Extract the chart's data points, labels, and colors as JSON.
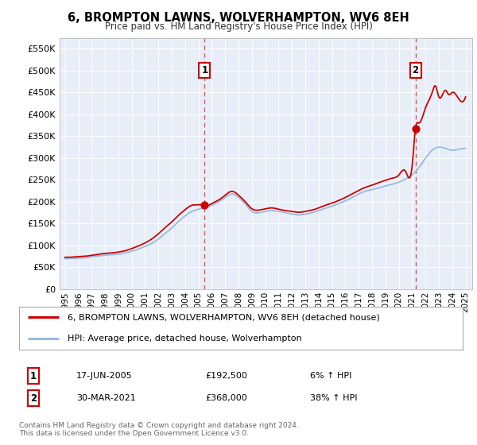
{
  "title": "6, BROMPTON LAWNS, WOLVERHAMPTON, WV6 8EH",
  "subtitle": "Price paid vs. HM Land Registry's House Price Index (HPI)",
  "ylabel_ticks": [
    "£0",
    "£50K",
    "£100K",
    "£150K",
    "£200K",
    "£250K",
    "£300K",
    "£350K",
    "£400K",
    "£450K",
    "£500K",
    "£550K"
  ],
  "ytick_values": [
    0,
    50000,
    100000,
    150000,
    200000,
    250000,
    300000,
    350000,
    400000,
    450000,
    500000,
    550000
  ],
  "ylim": [
    0,
    575000
  ],
  "xlim_start": 1994.6,
  "xlim_end": 2025.5,
  "sale1_x": 2005.46,
  "sale1_y": 192500,
  "sale2_x": 2021.25,
  "sale2_y": 368000,
  "sale1_label": "1",
  "sale2_label": "2",
  "sale1_date": "17-JUN-2005",
  "sale1_price": "£192,500",
  "sale1_hpi": "6% ↑ HPI",
  "sale2_date": "30-MAR-2021",
  "sale2_price": "£368,000",
  "sale2_hpi": "38% ↑ HPI",
  "line1_color": "#cc0000",
  "line2_color": "#99bbdd",
  "dashed_color": "#dd4444",
  "background_chart": "#e8eef8",
  "background_fig": "#ffffff",
  "legend1_label": "6, BROMPTON LAWNS, WOLVERHAMPTON, WV6 8EH (detached house)",
  "legend2_label": "HPI: Average price, detached house, Wolverhampton",
  "footer": "Contains HM Land Registry data © Crown copyright and database right 2024.\nThis data is licensed under the Open Government Licence v3.0.",
  "xtick_years": [
    1995,
    1996,
    1997,
    1998,
    1999,
    2000,
    2001,
    2002,
    2003,
    2004,
    2005,
    2006,
    2007,
    2008,
    2009,
    2010,
    2011,
    2012,
    2013,
    2014,
    2015,
    2016,
    2017,
    2018,
    2019,
    2020,
    2021,
    2022,
    2023,
    2024,
    2025
  ],
  "hpi_data": [
    [
      1995.0,
      70000
    ],
    [
      1995.5,
      70500
    ],
    [
      1996.0,
      71000
    ],
    [
      1996.5,
      72000
    ],
    [
      1997.0,
      74000
    ],
    [
      1997.5,
      76000
    ],
    [
      1998.0,
      78000
    ],
    [
      1998.5,
      79000
    ],
    [
      1999.0,
      80000
    ],
    [
      1999.5,
      83000
    ],
    [
      2000.0,
      87000
    ],
    [
      2000.5,
      92000
    ],
    [
      2001.0,
      98000
    ],
    [
      2001.5,
      105000
    ],
    [
      2002.0,
      115000
    ],
    [
      2002.5,
      128000
    ],
    [
      2003.0,
      140000
    ],
    [
      2003.5,
      155000
    ],
    [
      2004.0,
      168000
    ],
    [
      2004.5,
      178000
    ],
    [
      2005.0,
      183000
    ],
    [
      2005.5,
      186000
    ],
    [
      2006.0,
      192000
    ],
    [
      2006.5,
      200000
    ],
    [
      2007.0,
      210000
    ],
    [
      2007.5,
      218000
    ],
    [
      2008.0,
      210000
    ],
    [
      2008.5,
      195000
    ],
    [
      2009.0,
      178000
    ],
    [
      2009.5,
      175000
    ],
    [
      2010.0,
      178000
    ],
    [
      2010.5,
      180000
    ],
    [
      2011.0,
      178000
    ],
    [
      2011.5,
      175000
    ],
    [
      2012.0,
      172000
    ],
    [
      2012.5,
      170000
    ],
    [
      2013.0,
      172000
    ],
    [
      2013.5,
      175000
    ],
    [
      2014.0,
      180000
    ],
    [
      2014.5,
      185000
    ],
    [
      2015.0,
      190000
    ],
    [
      2015.5,
      196000
    ],
    [
      2016.0,
      202000
    ],
    [
      2016.5,
      210000
    ],
    [
      2017.0,
      218000
    ],
    [
      2017.5,
      224000
    ],
    [
      2018.0,
      228000
    ],
    [
      2018.5,
      232000
    ],
    [
      2019.0,
      236000
    ],
    [
      2019.5,
      240000
    ],
    [
      2020.0,
      245000
    ],
    [
      2020.5,
      252000
    ],
    [
      2021.0,
      262000
    ],
    [
      2021.5,
      278000
    ],
    [
      2022.0,
      300000
    ],
    [
      2022.5,
      318000
    ],
    [
      2023.0,
      325000
    ],
    [
      2023.5,
      322000
    ],
    [
      2024.0,
      318000
    ],
    [
      2024.5,
      320000
    ],
    [
      2025.0,
      322000
    ]
  ],
  "prop_data": [
    [
      1995.0,
      73000
    ],
    [
      1995.5,
      73500
    ],
    [
      1996.0,
      74500
    ],
    [
      1996.5,
      75500
    ],
    [
      1997.0,
      77500
    ],
    [
      1997.5,
      80000
    ],
    [
      1998.0,
      82000
    ],
    [
      1998.5,
      83000
    ],
    [
      1999.0,
      85000
    ],
    [
      1999.5,
      88000
    ],
    [
      2000.0,
      93000
    ],
    [
      2000.5,
      99000
    ],
    [
      2001.0,
      106000
    ],
    [
      2001.5,
      115000
    ],
    [
      2002.0,
      127000
    ],
    [
      2002.5,
      141000
    ],
    [
      2003.0,
      154000
    ],
    [
      2003.5,
      169000
    ],
    [
      2004.0,
      182000
    ],
    [
      2004.5,
      192000
    ],
    [
      2005.0,
      193000
    ],
    [
      2005.46,
      192500
    ],
    [
      2005.5,
      192000
    ],
    [
      2006.0,
      196000
    ],
    [
      2006.5,
      204000
    ],
    [
      2007.0,
      215000
    ],
    [
      2007.5,
      224000
    ],
    [
      2008.0,
      215000
    ],
    [
      2008.5,
      200000
    ],
    [
      2009.0,
      184000
    ],
    [
      2009.5,
      181000
    ],
    [
      2010.0,
      184000
    ],
    [
      2010.5,
      186000
    ],
    [
      2011.0,
      183000
    ],
    [
      2011.5,
      180000
    ],
    [
      2012.0,
      178000
    ],
    [
      2012.5,
      176000
    ],
    [
      2013.0,
      178000
    ],
    [
      2013.5,
      181000
    ],
    [
      2014.0,
      186000
    ],
    [
      2014.5,
      192000
    ],
    [
      2015.0,
      197000
    ],
    [
      2015.5,
      203000
    ],
    [
      2016.0,
      210000
    ],
    [
      2016.5,
      218000
    ],
    [
      2017.0,
      226000
    ],
    [
      2017.5,
      233000
    ],
    [
      2018.0,
      238000
    ],
    [
      2018.5,
      244000
    ],
    [
      2019.0,
      249000
    ],
    [
      2019.5,
      254000
    ],
    [
      2020.0,
      261000
    ],
    [
      2020.5,
      270000
    ],
    [
      2021.0,
      282000
    ],
    [
      2021.25,
      368000
    ],
    [
      2021.5,
      380000
    ],
    [
      2022.0,
      415000
    ],
    [
      2022.5,
      450000
    ],
    [
      2022.75,
      465000
    ],
    [
      2023.0,
      440000
    ],
    [
      2023.5,
      455000
    ],
    [
      2023.75,
      445000
    ],
    [
      2024.0,
      450000
    ],
    [
      2024.5,
      435000
    ],
    [
      2025.0,
      440000
    ]
  ]
}
